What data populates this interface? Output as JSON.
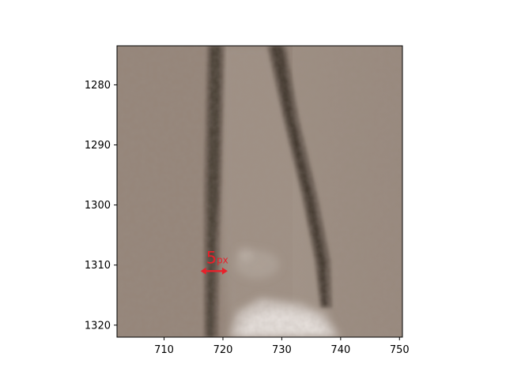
{
  "axes": {
    "xlim": [
      702,
      750.5
    ],
    "ylim": [
      1273.5,
      1322
    ],
    "y_inverted": true,
    "x_ticks": [
      {
        "value": 710,
        "label": "710"
      },
      {
        "value": 720,
        "label": "720"
      },
      {
        "value": 730,
        "label": "730"
      },
      {
        "value": 740,
        "label": "740"
      },
      {
        "value": 750,
        "label": "750"
      }
    ],
    "y_ticks": [
      {
        "value": 1280,
        "label": "1280"
      },
      {
        "value": 1290,
        "label": "1290"
      },
      {
        "value": 1300,
        "label": "1300"
      },
      {
        "value": 1310,
        "label": "1310"
      },
      {
        "value": 1320,
        "label": "1320"
      }
    ]
  },
  "image_content": {
    "description_colors": {
      "background": "#948579",
      "dark_line": "#4a3f36",
      "light_region": "#ddd6d2"
    }
  },
  "measurement": {
    "value": "5",
    "unit": "px",
    "color": "#e8202a",
    "x_start": 716.2,
    "x_end": 720.8,
    "y": 1311
  }
}
